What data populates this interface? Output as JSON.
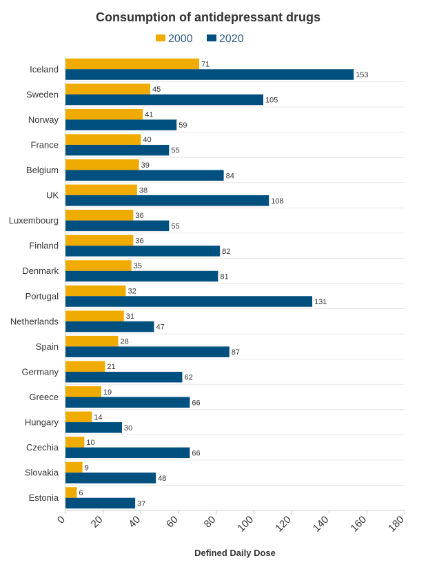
{
  "chart_data": {
    "type": "bar",
    "orientation": "horizontal",
    "title": "Consumption of antidepressant drugs",
    "xlabel": "Defined Daily Dose",
    "ylabel": "",
    "xlim": [
      0,
      180
    ],
    "xticks": [
      0,
      20,
      40,
      60,
      80,
      100,
      120,
      140,
      160,
      180
    ],
    "legend_position": "top-center",
    "grid": true,
    "categories": [
      "Iceland",
      "Sweden",
      "Norway",
      "France",
      "Belgium",
      "UK",
      "Luxembourg",
      "Finland",
      "Denmark",
      "Portugal",
      "Netherlands",
      "Spain",
      "Germany",
      "Greece",
      "Hungary",
      "Czechia",
      "Slovakia",
      "Estonia"
    ],
    "series": [
      {
        "name": "2000",
        "color": "#f0ab00",
        "values": [
          71,
          45,
          41,
          40,
          39,
          38,
          36,
          36,
          35,
          32,
          31,
          28,
          21,
          19,
          14,
          10,
          9,
          6
        ]
      },
      {
        "name": "2020",
        "color": "#00507f",
        "values": [
          153,
          105,
          59,
          55,
          84,
          108,
          55,
          82,
          81,
          131,
          47,
          87,
          62,
          66,
          30,
          66,
          48,
          37
        ]
      }
    ]
  }
}
